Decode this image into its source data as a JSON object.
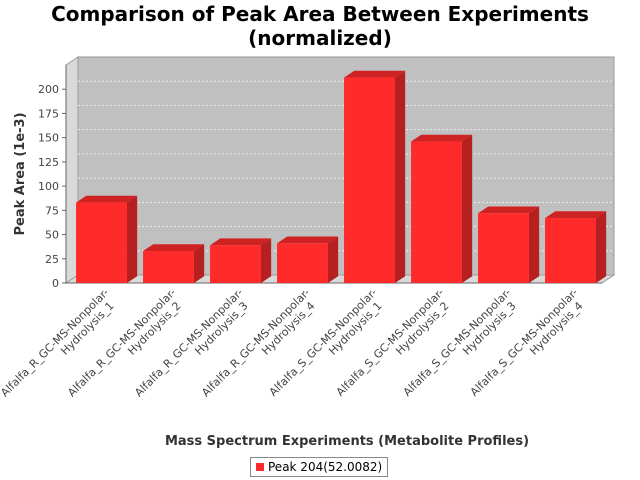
{
  "chart_data": {
    "type": "bar",
    "title_lines": [
      "Comparison of Peak Area Between Experiments",
      "(normalized)"
    ],
    "xlabel": "Mass Spectrum Experiments (Metabolite Profiles)",
    "ylabel": "Peak Area (1e-3)",
    "ylim": [
      0,
      225
    ],
    "yticks": [
      0,
      25,
      50,
      75,
      100,
      125,
      150,
      175,
      200
    ],
    "grid": true,
    "legend_position": "bottom",
    "categories": [
      [
        "Alfalfa_R_GC-MS-Nonpolar-",
        "Hydrolysis_1"
      ],
      [
        "Alfalfa_R_GC-MS-Nonpolar-",
        "Hydrolysis_2"
      ],
      [
        "Alfalfa_R_GC-MS-Nonpolar-",
        "Hydrolysis_3"
      ],
      [
        "Alfalfa_R_GC-MS-Nonpolar-",
        "Hydrolysis_4"
      ],
      [
        "Alfalfa_S_GC-MS-Nonpolar-",
        "Hydrolysis_1"
      ],
      [
        "Alfalfa_S_GC-MS-Nonpolar-",
        "Hydrolysis_2"
      ],
      [
        "Alfalfa_S_GC-MS-Nonpolar-",
        "Hydrolysis_3"
      ],
      [
        "Alfalfa_S_GC-MS-Nonpolar-",
        "Hydrolysis_4"
      ]
    ],
    "series": [
      {
        "name": "Peak 204(52.0082)",
        "color": "#ff2a2a",
        "values": [
          83,
          33,
          39,
          41,
          212,
          146,
          72,
          67
        ]
      }
    ]
  }
}
